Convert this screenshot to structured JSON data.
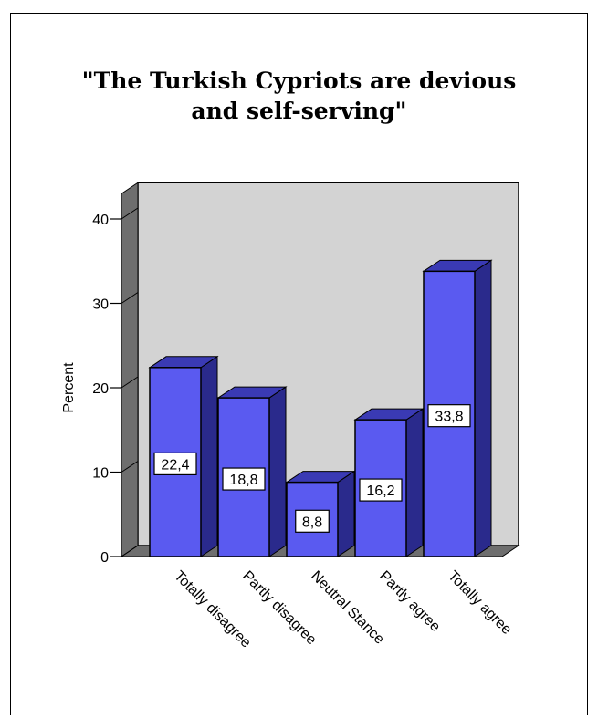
{
  "chart_data": {
    "type": "bar",
    "title": "\"The Turkish Cypriots are devious and self-serving\"",
    "title_lines": [
      "\"The Turkish Cypriots are devious",
      "and self-serving\""
    ],
    "ylabel": "Percent",
    "xlabel": "",
    "ylim": [
      0,
      40
    ],
    "yticks": [
      0,
      10,
      20,
      30,
      40
    ],
    "categories": [
      "Totally disagree",
      "Partly disagree",
      "Neutral Stance",
      "Partly agree",
      "Totally agree"
    ],
    "values": [
      22.4,
      18.8,
      8.8,
      16.2,
      33.8
    ],
    "value_labels": [
      "22,4",
      "18,8",
      "8,8",
      "16,2",
      "33,8"
    ],
    "grid": false,
    "legend": "none",
    "colors": {
      "bar_front": "#5A5AF0",
      "bar_side": "#2A2A8C",
      "bar_top": "#3A3AB4",
      "plot_wall": "#D3D3D3",
      "side_wall": "#6E6E6E",
      "floor": "#6E6E6E"
    }
  }
}
